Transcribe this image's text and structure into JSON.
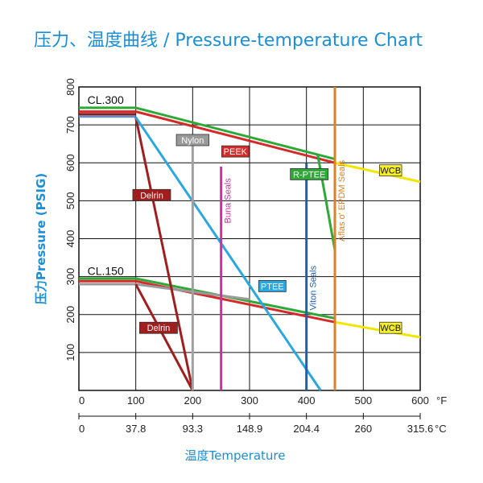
{
  "title": "压力、温度曲线 / Pressure-temperature Chart",
  "chart_data": {
    "type": "line",
    "ylabel": "压力Pressure (PSIG)",
    "xlabel": "温度Temperature",
    "x_unit_f": "°F",
    "x_unit_c": "°C",
    "xlim": [
      0,
      600
    ],
    "ylim": [
      0,
      800
    ],
    "xticks_f": [
      "0",
      "100",
      "200",
      "300",
      "400",
      "500",
      "600"
    ],
    "xticks_c": [
      {
        "f": 0,
        "label": "0"
      },
      {
        "f": 100,
        "label": "37.8"
      },
      {
        "f": 200,
        "label": "93.3"
      },
      {
        "f": 300,
        "label": "148.9"
      },
      {
        "f": 400,
        "label": "204.4"
      },
      {
        "f": 500,
        "label": "260"
      },
      {
        "f": 600,
        "label": "315.6"
      }
    ],
    "yticks": [
      "100",
      "200",
      "300",
      "400",
      "500",
      "600",
      "700",
      "800"
    ],
    "class_labels": [
      {
        "text": "CL.300",
        "x": 15,
        "y": 755
      },
      {
        "text": "CL.150",
        "x": 15,
        "y": 305
      }
    ],
    "series": [
      {
        "name": "CL.300 green",
        "color": "#2ea836",
        "points": [
          [
            0,
            745
          ],
          [
            100,
            745
          ],
          [
            450,
            610
          ]
        ]
      },
      {
        "name": "CL.300 red",
        "color": "#d42a2a",
        "points": [
          [
            0,
            735
          ],
          [
            100,
            735
          ],
          [
            450,
            600
          ]
        ]
      },
      {
        "name": "CL.300 dark",
        "color": "#8a1c1c",
        "points": [
          [
            0,
            728
          ],
          [
            100,
            728
          ]
        ]
      },
      {
        "name": "CL.300 blue",
        "color": "#6a8dc4",
        "points": [
          [
            0,
            722
          ],
          [
            100,
            722
          ]
        ]
      },
      {
        "name": "CL.150 green",
        "color": "#2ea836",
        "points": [
          [
            0,
            295
          ],
          [
            100,
            295
          ],
          [
            450,
            190
          ]
        ]
      },
      {
        "name": "CL.150 red",
        "color": "#d42a2a",
        "points": [
          [
            0,
            288
          ],
          [
            100,
            288
          ],
          [
            450,
            180
          ]
        ]
      },
      {
        "name": "CL.150 grey",
        "color": "#9a9a9a",
        "points": [
          [
            0,
            280
          ],
          [
            100,
            280
          ],
          [
            300,
            240
          ]
        ]
      },
      {
        "name": "Delrin 300",
        "color": "#a01e1e",
        "points": [
          [
            100,
            720
          ],
          [
            200,
            0
          ]
        ]
      },
      {
        "name": "Delrin 150",
        "color": "#a01e1e",
        "points": [
          [
            100,
            280
          ],
          [
            200,
            0
          ]
        ]
      },
      {
        "name": "PTEE",
        "color": "#29a8e0",
        "points": [
          [
            100,
            720
          ],
          [
            425,
            0
          ]
        ]
      },
      {
        "name": "R-PTEE",
        "color": "#2ea836",
        "points": [
          [
            420,
            620
          ],
          [
            450,
            370
          ]
        ]
      },
      {
        "name": "WCB 300",
        "color": "#f2e600",
        "points": [
          [
            450,
            600
          ],
          [
            600,
            550
          ]
        ]
      },
      {
        "name": "WCB 150",
        "color": "#f2e600",
        "points": [
          [
            450,
            180
          ],
          [
            600,
            140
          ]
        ]
      },
      {
        "name": "Nylon",
        "color": "#a0a0a0",
        "points": [
          [
            200,
            0
          ],
          [
            200,
            670
          ]
        ]
      },
      {
        "name": "Buna Seals",
        "color": "#d02ea0",
        "points": [
          [
            250,
            0
          ],
          [
            250,
            590
          ]
        ]
      },
      {
        "name": "Viton Seals",
        "color": "#1f5fb0",
        "points": [
          [
            400,
            0
          ],
          [
            400,
            600
          ]
        ]
      },
      {
        "name": "Aflas or EPDM Seals",
        "color": "#d9822b",
        "points": [
          [
            450,
            0
          ],
          [
            450,
            800
          ]
        ]
      }
    ],
    "box_labels": [
      {
        "text": "Nylon",
        "x": 200,
        "y": 660,
        "bg": "#9a9a9a",
        "fg": "#ffffff"
      },
      {
        "text": "PEEK",
        "x": 275,
        "y": 630,
        "bg": "#d42a2a",
        "fg": "#ffffff"
      },
      {
        "text": "R-PTEE",
        "x": 405,
        "y": 570,
        "bg": "#2ea836",
        "fg": "#ffffff"
      },
      {
        "text": "WCB",
        "x": 548,
        "y": 580,
        "bg": "#f7ee2a",
        "fg": "#111111"
      },
      {
        "text": "Delrin",
        "x": 128,
        "y": 515,
        "bg": "#a01e1e",
        "fg": "#ffffff"
      },
      {
        "text": "PTEE",
        "x": 340,
        "y": 275,
        "bg": "#29a8e0",
        "fg": "#ffffff"
      },
      {
        "text": "Delrin",
        "x": 140,
        "y": 165,
        "bg": "#a01e1e",
        "fg": "#ffffff"
      },
      {
        "text": "WCB",
        "x": 548,
        "y": 165,
        "bg": "#f7ee2a",
        "fg": "#111111"
      }
    ],
    "vertical_labels": [
      {
        "text": "Buna Seals",
        "x": 250,
        "y": 500,
        "color": "#d02ea0"
      },
      {
        "text": "Viton Seals",
        "x": 400,
        "y": 270,
        "color": "#1f5fb0"
      },
      {
        "text": "Aflas o' EPDM Seals",
        "x": 450,
        "y": 500,
        "color": "#d9822b"
      }
    ],
    "grid": true
  }
}
